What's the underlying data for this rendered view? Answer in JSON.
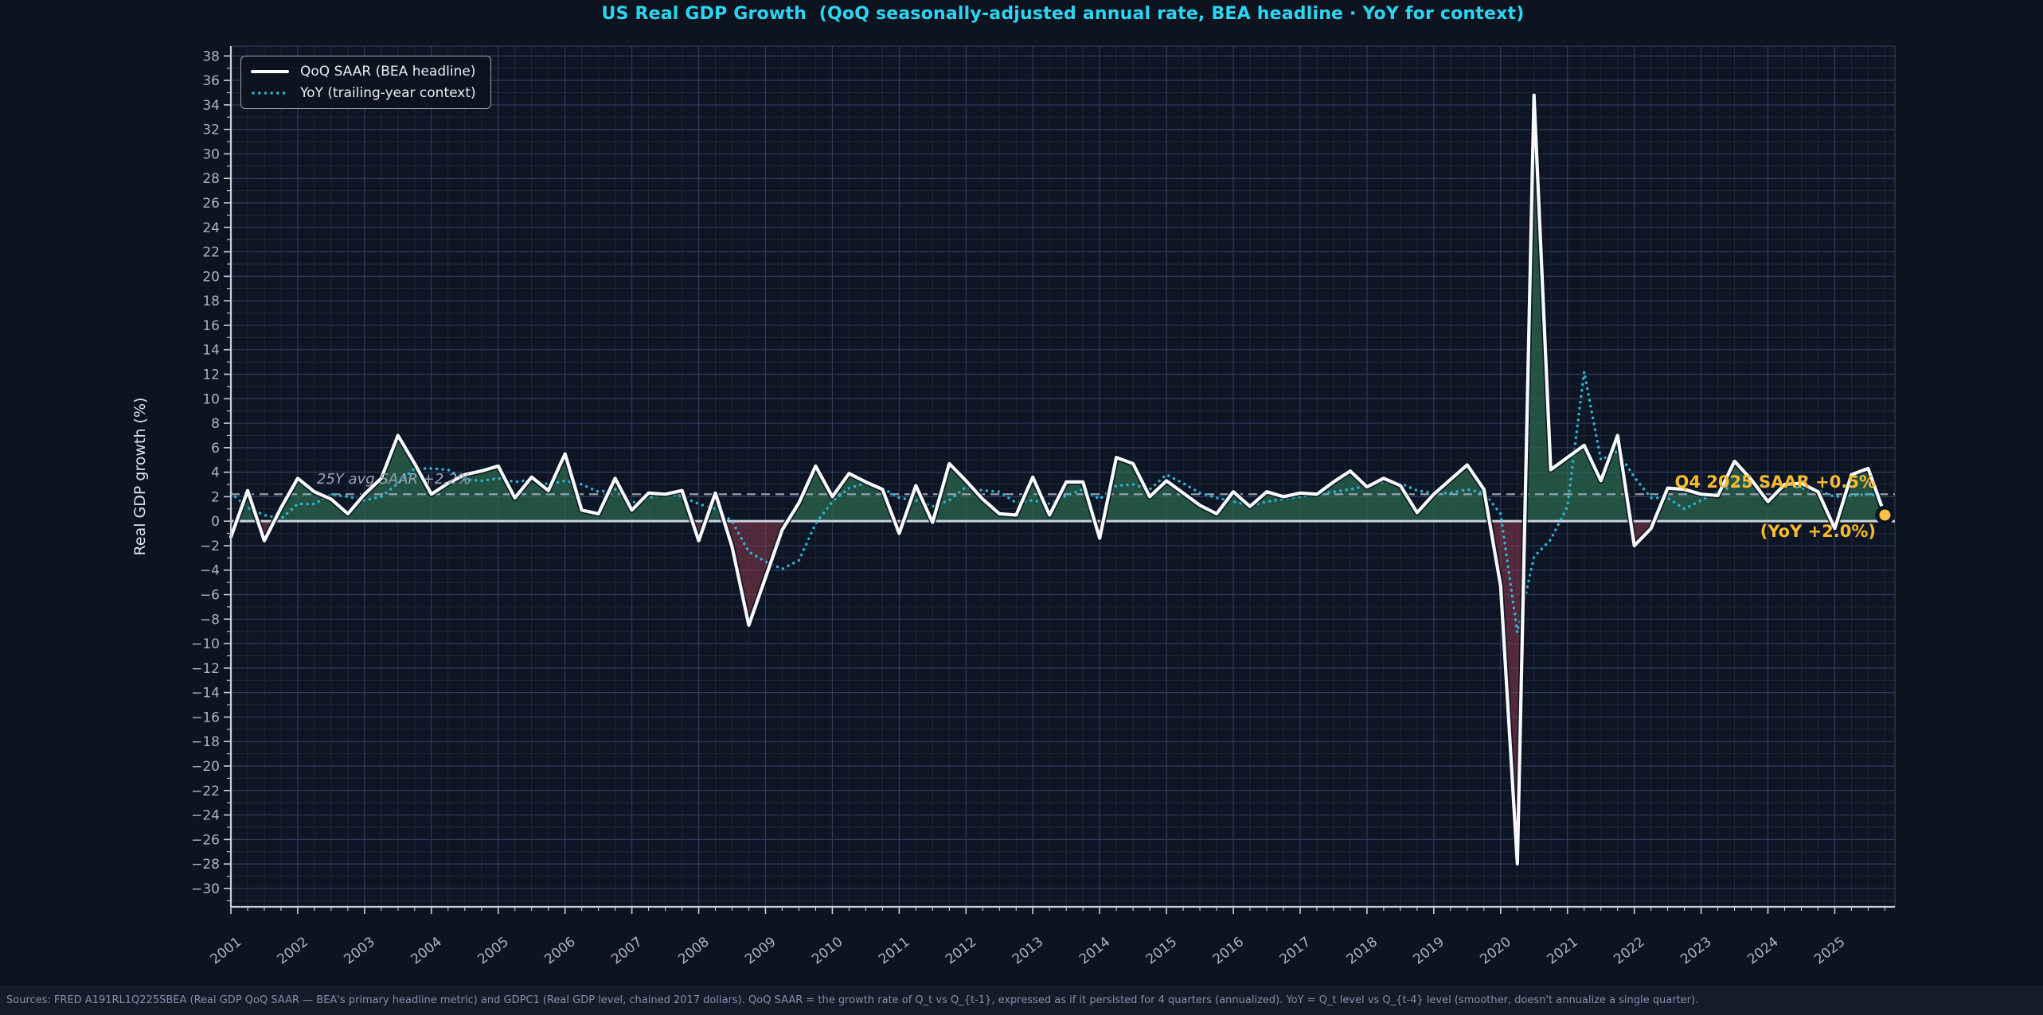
{
  "title": "US Real GDP Growth  (QoQ seasonally-adjusted annual rate, BEA headline · YoY for context)",
  "legend": {
    "items": [
      {
        "label": "QoQ SAAR (BEA headline)",
        "style": "solid-white-line"
      },
      {
        "label": "YoY (trailing-year context)",
        "style": "dotted-cyan-line"
      }
    ]
  },
  "footer": {
    "text": "Sources: FRED A191RL1Q225SBEA (Real GDP QoQ SAAR — BEA's primary headline metric) and GDPC1 (Real GDP level, chained 2017 dollars). QoQ SAAR = the growth rate of Q_t vs Q_{t-1}, expressed as if it persisted for 4 quarters (annualized). YoY = Q_t level vs Q_{t-4} level (smoother, doesn't annualize a single quarter)."
  },
  "chart_data": {
    "type": "line",
    "title": "US Real GDP Growth  (QoQ seasonally-adjusted annual rate, BEA headline · YoY for context)",
    "xlabel": "",
    "ylabel": "Real GDP growth (%)",
    "x_start_year": 2001,
    "x_step_years": 0.25,
    "xlim": [
      2001,
      2025.9
    ],
    "ylim": [
      -31.5,
      38.8
    ],
    "grid": true,
    "legend_position": "upper-left",
    "x_ticks": [
      2001,
      2002,
      2003,
      2004,
      2005,
      2006,
      2007,
      2008,
      2009,
      2010,
      2011,
      2012,
      2013,
      2014,
      2015,
      2016,
      2017,
      2018,
      2019,
      2020,
      2021,
      2022,
      2023,
      2024,
      2025
    ],
    "y_ticks": [
      38,
      36,
      34,
      32,
      30,
      28,
      26,
      24,
      22,
      20,
      18,
      16,
      14,
      12,
      10,
      8,
      6,
      4,
      2,
      0,
      -2,
      -4,
      -6,
      -8,
      -10,
      -12,
      -14,
      -16,
      -18,
      -20,
      -22,
      -24,
      -26,
      -28,
      -30
    ],
    "series": [
      {
        "name": "QoQ SAAR (BEA headline)",
        "values": [
          -1.3,
          2.5,
          -1.6,
          1.1,
          3.5,
          2.4,
          1.8,
          0.6,
          2.2,
          3.5,
          7.0,
          4.7,
          2.2,
          3.1,
          3.8,
          4.1,
          4.5,
          1.9,
          3.6,
          2.5,
          5.5,
          0.9,
          0.6,
          3.5,
          0.9,
          2.3,
          2.2,
          2.5,
          -1.6,
          2.3,
          -2.1,
          -8.5,
          -4.6,
          -0.7,
          1.5,
          4.5,
          2.0,
          3.9,
          3.2,
          2.6,
          -1.0,
          2.9,
          -0.1,
          4.7,
          3.3,
          1.8,
          0.6,
          0.5,
          3.6,
          0.5,
          3.2,
          3.2,
          -1.4,
          5.2,
          4.7,
          2.0,
          3.3,
          2.3,
          1.3,
          0.6,
          2.4,
          1.2,
          2.4,
          2.0,
          2.3,
          2.2,
          3.2,
          4.1,
          2.8,
          3.5,
          2.9,
          0.7,
          2.2,
          3.4,
          4.6,
          2.6,
          -5.3,
          -28.0,
          34.8,
          4.2,
          5.2,
          6.2,
          3.3,
          7.0,
          -2.0,
          -0.6,
          2.7,
          2.6,
          2.2,
          2.1,
          4.9,
          3.4,
          1.6,
          3.0,
          3.1,
          2.4,
          -0.6,
          3.8,
          4.3,
          0.5
        ]
      },
      {
        "name": "YoY (trailing-year context)",
        "values": [
          2.3,
          1.1,
          0.5,
          0.2,
          1.4,
          1.4,
          2.2,
          2.0,
          1.7,
          2.0,
          3.1,
          4.3,
          4.3,
          4.2,
          3.4,
          3.3,
          3.5,
          3.2,
          3.4,
          3.0,
          3.3,
          3.0,
          2.4,
          2.6,
          1.5,
          1.9,
          2.3,
          2.0,
          1.4,
          1.0,
          0.0,
          -2.5,
          -3.3,
          -3.9,
          -3.2,
          -0.2,
          1.6,
          2.7,
          3.1,
          2.7,
          1.9,
          1.7,
          1.2,
          1.7,
          2.8,
          2.5,
          2.4,
          1.5,
          1.7,
          1.4,
          2.1,
          2.6,
          1.8,
          2.9,
          3.0,
          2.6,
          3.8,
          3.1,
          2.3,
          1.9,
          1.6,
          1.3,
          1.6,
          1.8,
          2.0,
          2.2,
          2.4,
          2.6,
          2.9,
          3.2,
          3.1,
          2.5,
          2.3,
          2.3,
          2.6,
          2.3,
          0.6,
          -9.1,
          -2.9,
          -1.5,
          1.2,
          12.2,
          5.0,
          5.7,
          3.6,
          1.9,
          1.9,
          1.0,
          1.7,
          2.4,
          2.9,
          3.1,
          2.9,
          3.0,
          2.7,
          2.5,
          2.0,
          2.1,
          2.2,
          2.0
        ]
      }
    ],
    "avg_line": {
      "value": 2.2,
      "label": "25Y avg SAAR +2.2%"
    },
    "annotation": {
      "line1": "Q4 2025 SAAR +0.5%",
      "line2": "(YoY +2.0%)"
    },
    "last_point": {
      "period": "Q4 2025",
      "qoq_saar": 0.5,
      "yoy": 2.0
    },
    "colors": {
      "background": "#0d1420",
      "plot_bg": "#0e1625",
      "title": "#2bd6f2",
      "qoq_line": "#f8f9fb",
      "halo": "#0c1220",
      "yoy_line": "#2cb5d6",
      "pos_fill": "#2d6a4f",
      "neg_fill": "#8a3a4e",
      "avg_line": "#9aa6b6",
      "zero_line": "#ccd4df",
      "grid_major": "#2e3c5a",
      "grid_minor": "#1c2839",
      "spine": "#c9d1dd",
      "tick_label": "#aab4c6",
      "annotation": "#f7bb2e",
      "marker": "#f6c244",
      "footer_bg": "#141c2a"
    }
  }
}
